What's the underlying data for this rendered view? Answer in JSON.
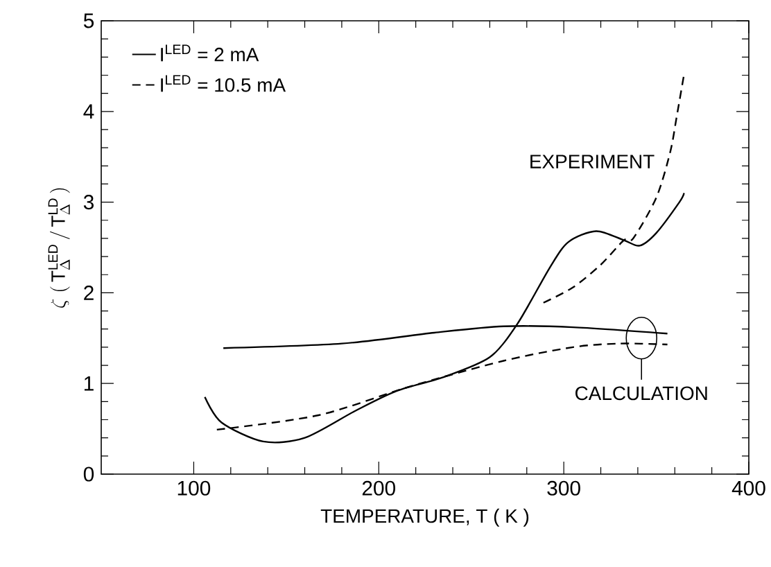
{
  "chart_data": {
    "type": "line",
    "xlabel": "TEMPERATURE, T ( K )",
    "ylabel": "\\zeta\\ (\\,\\mathrm{T}_{\\Delta}^{\\mathrm{LED}}\\,/\\,\\mathrm{T}_{\\Delta}^{\\mathrm{LD}}\\,)",
    "xlim": [
      50,
      400
    ],
    "ylim": [
      0,
      5
    ],
    "xticks": [
      100,
      200,
      300,
      400
    ],
    "yticks": [
      0,
      1,
      2,
      3,
      4,
      5
    ],
    "legend": "top left",
    "grid": false,
    "marker": "none",
    "annotations": [
      "EXPERIMENT",
      {
        "text": "CALCULATION",
        "x": 342,
        "y": 1.5
      }
    ],
    "series": [
      {
        "name": "I$^{LED}$ = 2 mA",
        "color": "#000000",
        "line_style": "solid",
        "x": [
          106,
          115,
          137.5,
          160,
          187.5,
          210,
          235,
          260,
          275,
          292.5,
          302.5,
          317.5,
          332.5,
          341,
          350,
          362.5,
          365
        ],
        "values": [
          0.85,
          0.57,
          0.36,
          0.4,
          0.7,
          0.92,
          1.07,
          1.29,
          1.66,
          2.28,
          2.56,
          2.68,
          2.58,
          2.52,
          2.66,
          3.0,
          3.1
        ]
      },
      {
        "name": "I$^{LED}$ = 10.5 mA",
        "color": "#000000",
        "line_style": "dashed",
        "x": [
          289,
          305,
          320,
          332.5,
          337.5,
          350,
          357.5,
          361,
          365
        ],
        "values": [
          1.89,
          2.06,
          2.31,
          2.58,
          2.6,
          3.05,
          3.55,
          3.94,
          4.41
        ]
      },
      {
        "color": "#000000",
        "line_style": "solid",
        "x": [
          116,
          180,
          230,
          267.5,
          305,
          356
        ],
        "values": [
          1.39,
          1.44,
          1.56,
          1.63,
          1.62,
          1.55
        ]
      },
      {
        "color": "#000000",
        "line_style": "dashed",
        "x": [
          112.5,
          167.5,
          217.5,
          267.5,
          305,
          330,
          356
        ],
        "values": [
          0.49,
          0.65,
          0.97,
          1.25,
          1.4,
          1.44,
          1.43
        ]
      }
    ]
  }
}
